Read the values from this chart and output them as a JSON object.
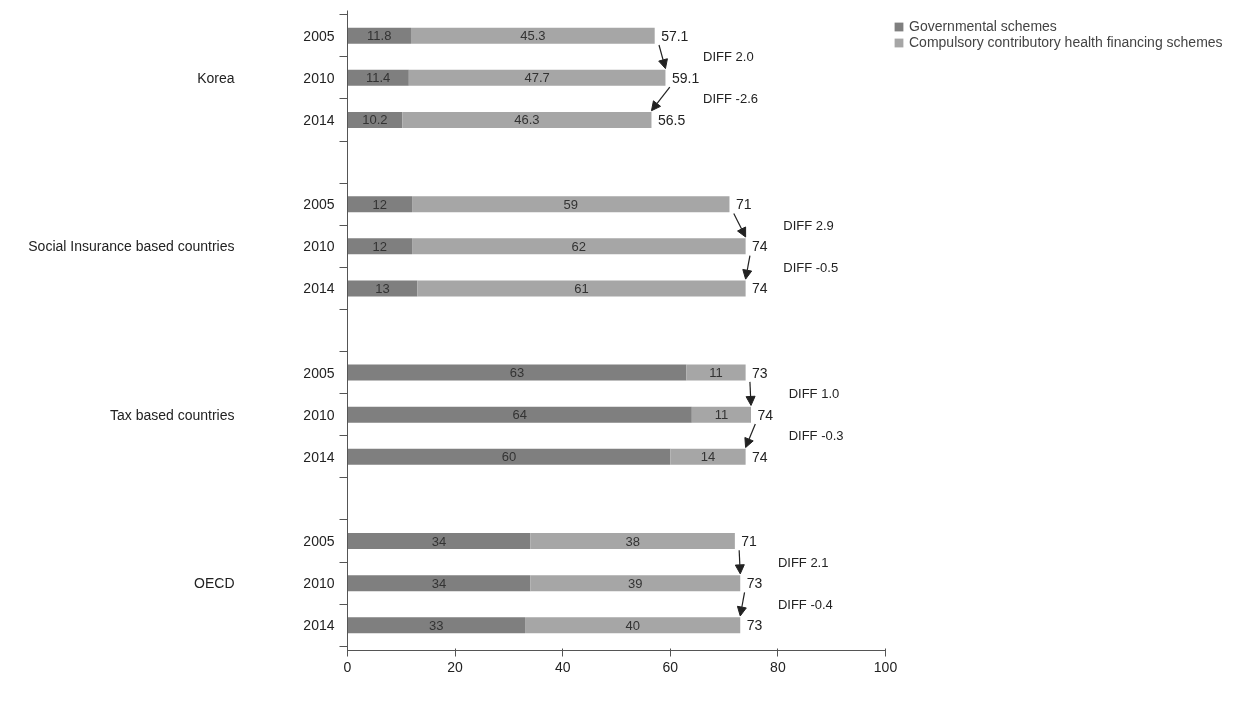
{
  "chart_data": {
    "type": "bar",
    "orientation": "horizontal",
    "stacked": true,
    "categories": [
      "2005",
      "2010",
      "2014",
      null,
      "2005",
      "2010",
      "2014",
      null,
      "2005",
      "2010",
      "2014",
      null,
      "2005",
      "2010",
      "2014"
    ],
    "series": [
      {
        "name": "Governmental schemes",
        "color": "#7f7f7f",
        "values": [
          11.8,
          11.4,
          10.2,
          null,
          12,
          12,
          13,
          null,
          63,
          64,
          60,
          null,
          34,
          34,
          33
        ]
      },
      {
        "name": "Compulsory contributory health financing schemes",
        "color": "#a6a6a6",
        "values": [
          45.3,
          47.7,
          46.3,
          null,
          59,
          62,
          61,
          null,
          11,
          11,
          14,
          null,
          38,
          39,
          40
        ]
      }
    ],
    "totals": [
      "57.1",
      "59.1",
      "56.5",
      null,
      "71",
      "74",
      "74",
      null,
      "73",
      "74",
      "74",
      null,
      "71",
      "73",
      "73"
    ],
    "data_labels": true,
    "xlim": [
      0,
      100
    ],
    "xticks": [
      0,
      20,
      40,
      60,
      80,
      100
    ],
    "grid": false,
    "legend": "top right",
    "annotations": [
      "Korea",
      "Social Insurance based countries",
      "Tax based countries",
      "OECD",
      "DIFF    2.0",
      "DIFF    -2.6",
      "DIFF    2.9",
      "DIFF    -0.5",
      "DIFF    1.0",
      "DIFF    -0.3",
      "DIFF    2.1",
      "DIFF    -0.4"
    ]
  }
}
